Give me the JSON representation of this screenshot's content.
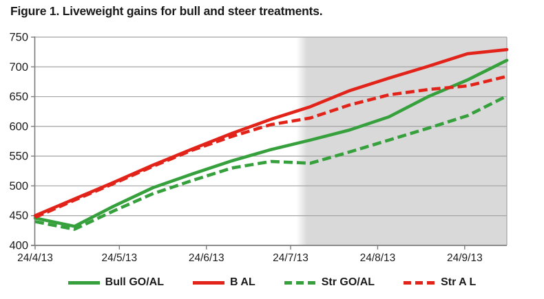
{
  "page": {
    "background": "#ffffff"
  },
  "chart_data": {
    "type": "line",
    "title": "Figure 1. Liveweight gains for bull and steer treatments.",
    "xlabel": "",
    "ylabel": "",
    "ylim": [
      400,
      750
    ],
    "yticks": [
      400,
      450,
      500,
      550,
      600,
      650,
      700,
      750
    ],
    "xticks": [
      {
        "label": "24/4/13",
        "day": 0
      },
      {
        "label": "24/5/13",
        "day": 30
      },
      {
        "label": "24/6/13",
        "day": 61
      },
      {
        "label": "24/7/13",
        "day": 91
      },
      {
        "label": "24/8/13",
        "day": 122
      },
      {
        "label": "24/9/13",
        "day": 153
      }
    ],
    "x_days": [
      0,
      14,
      28,
      42,
      56,
      70,
      84,
      98,
      112,
      126,
      140,
      154,
      168
    ],
    "x_dates": [
      "24/4/13",
      "8/5/13",
      "22/5/13",
      "5/6/13",
      "19/6/13",
      "3/7/13",
      "17/7/13",
      "31/7/13",
      "14/8/13",
      "28/8/13",
      "11/9/13",
      "25/9/13",
      "9/10/13"
    ],
    "series": [
      {
        "name": "Bull GO/AL",
        "line_style": "solid",
        "color": "#35a03c",
        "values": [
          446,
          432,
          466,
          497,
          520,
          542,
          561,
          577,
          594,
          616,
          650,
          678,
          711
        ]
      },
      {
        "name": "B AL",
        "line_style": "solid",
        "color": "#e2231a",
        "values": [
          450,
          478,
          506,
          535,
          562,
          588,
          612,
          633,
          660,
          681,
          701,
          722,
          729
        ]
      },
      {
        "name": "Str GO/AL",
        "line_style": "dashed",
        "color": "#35a03c",
        "values": [
          440,
          427,
          458,
          487,
          509,
          530,
          541,
          538,
          557,
          577,
          597,
          618,
          651
        ]
      },
      {
        "name": "Str A L",
        "line_style": "dashed",
        "color": "#e2231a",
        "values": [
          447,
          476,
          504,
          533,
          560,
          583,
          603,
          614,
          636,
          653,
          662,
          668,
          684
        ]
      }
    ],
    "shaded_region": {
      "start_day": 96,
      "end_day": 168
    },
    "legend": {
      "position": "bottom"
    },
    "grid": "horizontal",
    "colors": {
      "grid": "#a3a3a3",
      "axis": "#7c7c7c",
      "shade": "#d9d9d9",
      "text": "#1a1a1a"
    }
  }
}
